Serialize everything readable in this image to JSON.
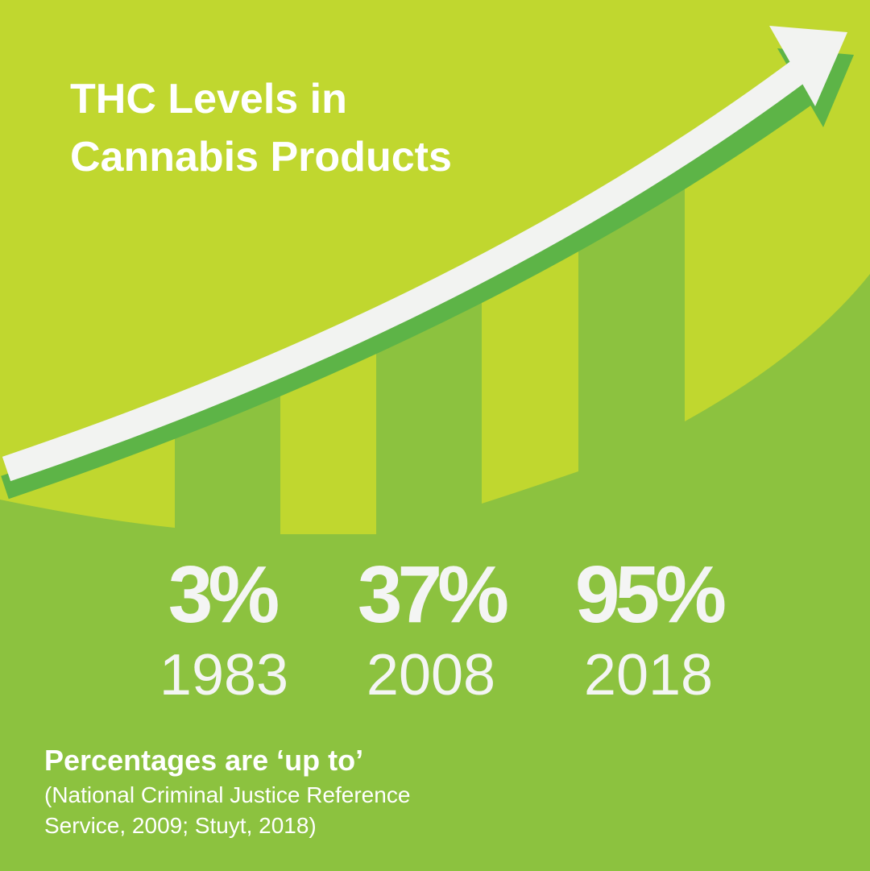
{
  "title": [
    "THC Levels in",
    "Cannabis Products"
  ],
  "stats": [
    {
      "value": "3%",
      "year": "1983"
    },
    {
      "value": "37%",
      "year": "2008"
    },
    {
      "value": "95%",
      "year": "2018"
    }
  ],
  "note": "Percentages are ‘up to’",
  "source": [
    "(National Criminal Justice Reference",
    "Service, 2009; Stuyt, 2018)"
  ]
}
